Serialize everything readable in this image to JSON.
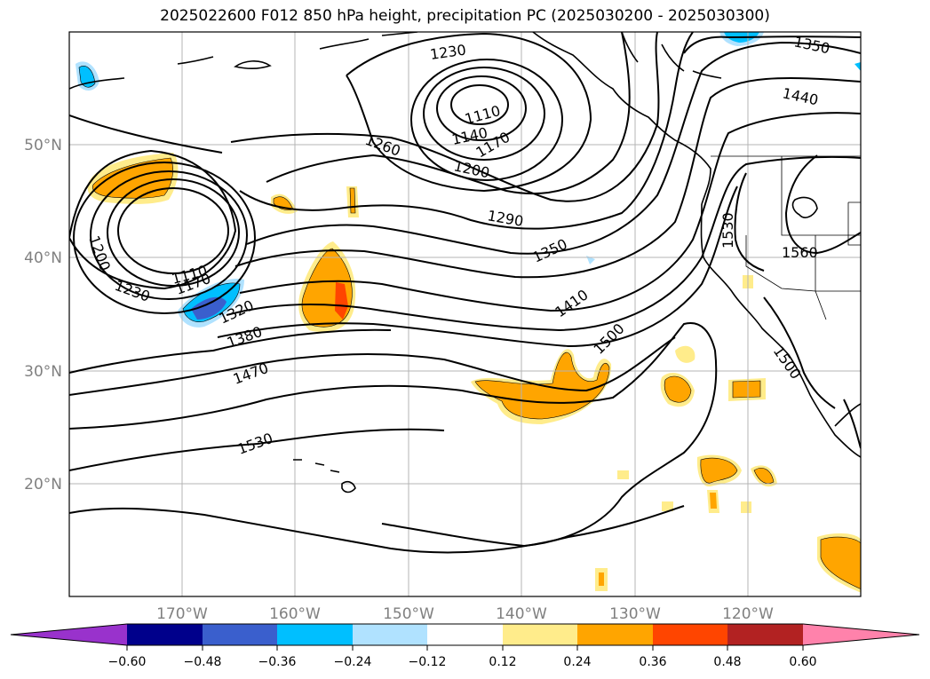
{
  "title": "2025022600 F012 850 hPa height, precipitation PC (2025030200 - 2025030300)",
  "lat_labels": [
    "50°N",
    "40°N",
    "30°N",
    "20°N"
  ],
  "lon_labels": [
    "170°W",
    "160°W",
    "150°W",
    "140°W",
    "130°W",
    "120°W"
  ],
  "contour_labels": [
    {
      "text": "1230",
      "id": "c1230a"
    },
    {
      "text": "1350",
      "id": "c1350a"
    },
    {
      "text": "1440",
      "id": "c1440"
    },
    {
      "text": "1110",
      "id": "c1110a"
    },
    {
      "text": "1140",
      "id": "c1140a"
    },
    {
      "text": "1170",
      "id": "c1170a"
    },
    {
      "text": "1200",
      "id": "c1200a"
    },
    {
      "text": "1260",
      "id": "c1260"
    },
    {
      "text": "1290",
      "id": "c1290"
    },
    {
      "text": "1350",
      "id": "c1350b"
    },
    {
      "text": "1530",
      "id": "c1530a"
    },
    {
      "text": "1560",
      "id": "c1560"
    },
    {
      "text": "1200",
      "id": "c1200b"
    },
    {
      "text": "1110",
      "id": "c1110b"
    },
    {
      "text": "1170",
      "id": "c1170b"
    },
    {
      "text": "1230",
      "id": "c1230b"
    },
    {
      "text": "1320",
      "id": "c1320"
    },
    {
      "text": "1380",
      "id": "c1380"
    },
    {
      "text": "1410",
      "id": "c1410"
    },
    {
      "text": "1500",
      "id": "c1500a"
    },
    {
      "text": "1470",
      "id": "c1470"
    },
    {
      "text": "1500",
      "id": "c1500b"
    },
    {
      "text": "1530",
      "id": "c1530b"
    }
  ],
  "colorbar": {
    "ticks": [
      "−0.60",
      "−0.48",
      "−0.36",
      "−0.24",
      "−0.12",
      "0.12",
      "0.24",
      "0.36",
      "0.48",
      "0.60"
    ],
    "colors": [
      "#9932cc",
      "#00008b",
      "#3a5fcd",
      "#00bfff",
      "#b0e2ff",
      "#ffffff",
      "#ffec8b",
      "#ffa500",
      "#ff4500",
      "#b22222",
      "#ff82ab"
    ]
  }
}
